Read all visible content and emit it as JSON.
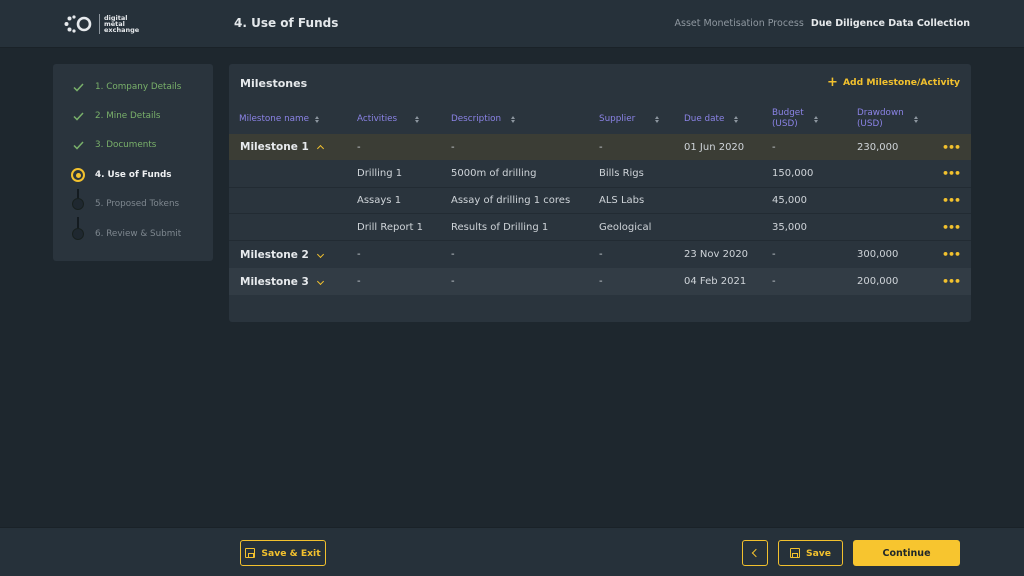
{
  "header": {
    "logo_text_lines": [
      "digital",
      "metal",
      "exchange"
    ],
    "page_heading": "4. Use of Funds",
    "breadcrumb_process": "Asset Monetisation Process",
    "breadcrumb_current": "Due Diligence Data Collection"
  },
  "steps": [
    {
      "label": "1. Company Details",
      "state": "done"
    },
    {
      "label": "2. Mine Details",
      "state": "done"
    },
    {
      "label": "3. Documents",
      "state": "done"
    },
    {
      "label": "4. Use of Funds",
      "state": "current"
    },
    {
      "label": "5. Proposed Tokens",
      "state": "todo"
    },
    {
      "label": "6. Review & Submit",
      "state": "todo"
    }
  ],
  "panel": {
    "title": "Milestones",
    "add_label": "Add Milestone/Activity"
  },
  "columns": {
    "name": "Milestone name",
    "activities": "Activities",
    "description": "Description",
    "supplier": "Supplier",
    "due": "Due date",
    "budget_1": "Budget",
    "budget_2": "(USD)",
    "drawdown_1": "Drawdown",
    "drawdown_2": "(USD)"
  },
  "rows": {
    "m1": {
      "name": "Milestone 1",
      "activities": "-",
      "description": "-",
      "supplier": "-",
      "due": "01 Jun 2020",
      "budget": "-",
      "drawdown": "230,000",
      "expanded": true
    },
    "a1": {
      "activities": "Drilling 1",
      "description": "5000m of drilling",
      "supplier": "Bills Rigs",
      "budget": "150,000"
    },
    "a2": {
      "activities": "Assays 1",
      "description": "Assay of drilling 1 cores",
      "supplier": "ALS Labs",
      "budget": "45,000"
    },
    "a3": {
      "activities": "Drill Report 1",
      "description": "Results of Drilling 1",
      "supplier": "Geological",
      "budget": "35,000"
    },
    "m2": {
      "name": "Milestone 2",
      "activities": "-",
      "description": "-",
      "supplier": "-",
      "due": "23 Nov 2020",
      "budget": "-",
      "drawdown": "300,000",
      "expanded": false
    },
    "m3": {
      "name": "Milestone 3",
      "activities": "-",
      "description": "-",
      "supplier": "-",
      "due": "04 Feb 2021",
      "budget": "-",
      "drawdown": "200,000",
      "expanded": false
    }
  },
  "row_menu_glyph": "•••",
  "footer": {
    "save_exit_label": "Save & Exit",
    "save_label": "Save",
    "continue_label": "Continue"
  },
  "colors": {
    "accent": "#f2c12e",
    "done": "#79b06a",
    "column_header": "#8b83e6"
  }
}
